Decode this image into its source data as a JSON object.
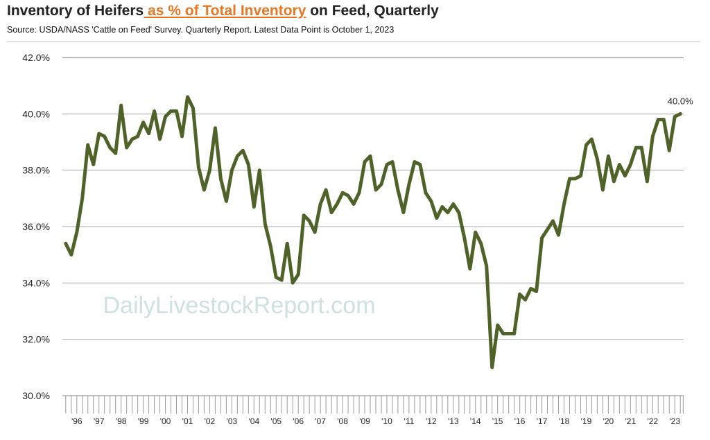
{
  "chart_data": {
    "type": "line",
    "title_parts": [
      "Inventory of Heifers",
      " as % of Total Inventory",
      " on Feed, Quarterly"
    ],
    "subtitle": "Source:  USDA/NASS 'Cattle on Feed' Survey.  Quarterly Report.  Latest Data Point is October 1, 2023",
    "watermark": "DailyLivestockReport.com",
    "ylim": [
      30,
      42
    ],
    "yticks": [
      30,
      32,
      34,
      36,
      38,
      40,
      42
    ],
    "ytick_labels": [
      "30.0%",
      "32.0%",
      "34.0%",
      "36.0%",
      "38.0%",
      "40.0%",
      "42.0%"
    ],
    "grid": true,
    "x_range": [
      1995.85,
      2023.9
    ],
    "xtick_positions": [
      1996.0,
      1997.0,
      1998.0,
      1999.0,
      2000.0,
      2001.0,
      2002.0,
      2003.0,
      2004.0,
      2005.0,
      2006.0,
      2007.0,
      2008.0,
      2009.0,
      2010.0,
      2011.0,
      2012.0,
      2013.0,
      2014.0,
      2015.0,
      2016.0,
      2017.0,
      2018.0,
      2019.0,
      2020.0,
      2021.0,
      2022.0,
      2023.0
    ],
    "xtick_labels": [
      "'96",
      "'97",
      "'98",
      "'99",
      "'00",
      "'01",
      "'02",
      "'03",
      "'04",
      "'05",
      "'06",
      "'07",
      "'08",
      "'09",
      "'10",
      "'11",
      "'12",
      "'13",
      "'14",
      "'15",
      "'16",
      "'17",
      "'18",
      "'19",
      "'20",
      "'21",
      "'22",
      "'23"
    ],
    "series": [
      {
        "name": "Heifers as % of Total Inventory on Feed",
        "color": "#4F6228",
        "x": [
          1996.0,
          1996.25,
          1996.5,
          1996.75,
          1997.0,
          1997.25,
          1997.5,
          1997.75,
          1998.0,
          1998.25,
          1998.5,
          1998.75,
          1999.0,
          1999.25,
          1999.5,
          1999.75,
          2000.0,
          2000.25,
          2000.5,
          2000.75,
          2001.0,
          2001.25,
          2001.5,
          2001.75,
          2002.0,
          2002.25,
          2002.5,
          2002.75,
          2003.0,
          2003.25,
          2003.5,
          2003.75,
          2004.0,
          2004.25,
          2004.5,
          2004.75,
          2005.0,
          2005.25,
          2005.5,
          2005.75,
          2006.0,
          2006.25,
          2006.5,
          2006.75,
          2007.0,
          2007.25,
          2007.5,
          2007.75,
          2008.0,
          2008.25,
          2008.5,
          2008.75,
          2009.0,
          2009.25,
          2009.5,
          2009.75,
          2010.0,
          2010.25,
          2010.5,
          2010.75,
          2011.0,
          2011.25,
          2011.5,
          2011.75,
          2012.0,
          2012.25,
          2012.5,
          2012.75,
          2013.0,
          2013.25,
          2013.5,
          2013.75,
          2014.0,
          2014.25,
          2014.5,
          2014.75,
          2015.0,
          2015.25,
          2015.5,
          2015.75,
          2016.0,
          2016.25,
          2016.5,
          2016.75,
          2017.0,
          2017.25,
          2017.5,
          2017.75,
          2018.0,
          2018.25,
          2018.5,
          2018.75,
          2019.0,
          2019.25,
          2019.5,
          2019.75,
          2020.0,
          2020.25,
          2020.5,
          2020.75,
          2021.0,
          2021.25,
          2021.5,
          2021.75,
          2022.0,
          2022.25,
          2022.5,
          2022.75,
          2023.0,
          2023.25,
          2023.5,
          2023.75
        ],
        "values": [
          35.4,
          35.0,
          35.8,
          37.0,
          38.9,
          38.2,
          39.3,
          39.2,
          38.8,
          38.6,
          40.3,
          38.8,
          39.1,
          39.2,
          39.7,
          39.3,
          40.1,
          39.1,
          39.9,
          40.1,
          40.1,
          39.2,
          40.6,
          40.2,
          38.1,
          37.3,
          38.0,
          39.5,
          37.7,
          36.9,
          38.0,
          38.5,
          38.7,
          38.2,
          36.7,
          38.0,
          36.1,
          35.3,
          34.2,
          34.1,
          35.4,
          34.0,
          34.3,
          36.4,
          36.2,
          35.8,
          36.8,
          37.3,
          36.5,
          36.8,
          37.2,
          37.1,
          36.8,
          37.2,
          38.3,
          38.5,
          37.3,
          37.5,
          38.2,
          38.3,
          37.3,
          36.5,
          37.5,
          38.3,
          38.2,
          37.2,
          36.9,
          36.3,
          36.7,
          36.5,
          36.8,
          36.5,
          35.6,
          34.5,
          35.8,
          35.4,
          34.6,
          31.0,
          32.5,
          32.2,
          32.2,
          32.2,
          33.6,
          33.4,
          33.8,
          33.7,
          35.6,
          35.9,
          36.2,
          35.7,
          36.8,
          37.7,
          37.7,
          37.8,
          38.9,
          39.1,
          38.4,
          37.3,
          38.5,
          37.6,
          38.2,
          37.8,
          38.2,
          38.8,
          38.8,
          37.6,
          39.2,
          39.8,
          39.8,
          38.7,
          39.9,
          40.0
        ]
      }
    ],
    "annotations": [
      {
        "text": "40.0%",
        "x": 2023.75,
        "y": 40.0
      }
    ]
  }
}
